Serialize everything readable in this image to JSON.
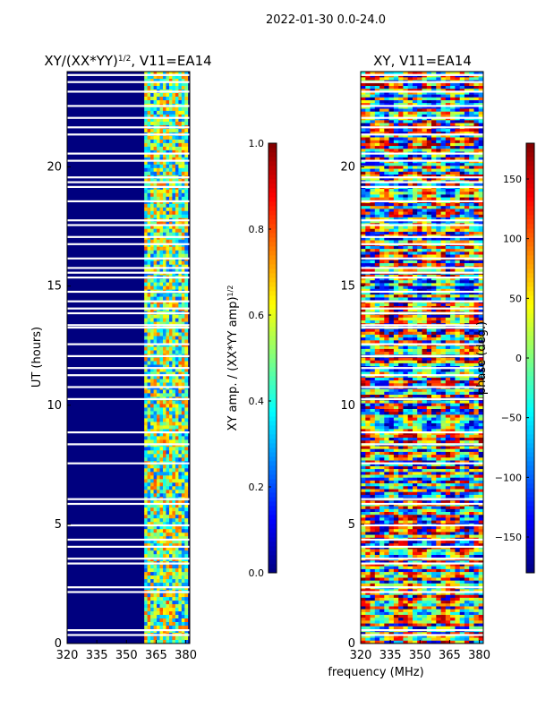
{
  "suptitle": "2022-01-30 0.0-24.0",
  "shared_xlabel": "frequency (MHz)",
  "colors": {
    "background_low": "#00007f",
    "jet": [
      "#00007f",
      "#0000ff",
      "#007fff",
      "#00ffff",
      "#7fff7f",
      "#ffff00",
      "#ff7f00",
      "#ff0000",
      "#7f0000"
    ],
    "gap": "#ffffff"
  },
  "chart_data": [
    {
      "type": "heatmap",
      "title": "XY/(XX*YY)",
      "title_sup": "1/2",
      "title_suffix": ", V11=EA14",
      "xlabel": "",
      "ylabel": "UT (hours)",
      "xlim": [
        320,
        382
      ],
      "ylim": [
        0,
        24
      ],
      "xticks": [
        320,
        335,
        350,
        365,
        380
      ],
      "yticks": [
        0,
        5,
        10,
        15,
        20
      ],
      "grid": false,
      "bands": [
        {
          "freq_range": [
            320,
            359
          ],
          "value_range": [
            0.0,
            0.15
          ],
          "description": "low amplitude"
        },
        {
          "freq_range": [
            359,
            381
          ],
          "value_range": [
            0.2,
            0.8
          ],
          "description": "higher amplitude"
        }
      ],
      "colorbar": {
        "label": "XY amp. / (XX*YY amp)",
        "label_sup": "1/2",
        "range": [
          0.0,
          1.0
        ],
        "ticks": [
          "0.0",
          "0.2",
          "0.4",
          "0.6",
          "0.8",
          "1.0"
        ],
        "colormap": "jet"
      }
    },
    {
      "type": "heatmap",
      "title": "XY, V11=EA14",
      "xlabel": "frequency (MHz)",
      "ylabel": "",
      "xlim": [
        320,
        382
      ],
      "ylim": [
        0,
        24
      ],
      "xticks": [
        320,
        335,
        350,
        365,
        380
      ],
      "yticks": [
        0,
        5,
        10,
        15,
        20
      ],
      "grid": false,
      "colorbar": {
        "label": "phase (deg.)",
        "range": [
          -180,
          180
        ],
        "ticks": [
          "150",
          "100",
          "50",
          "0",
          "−50",
          "−100",
          "−150"
        ],
        "tick_values": [
          150,
          100,
          50,
          0,
          -50,
          -100,
          -150
        ],
        "colormap": "jet"
      }
    }
  ]
}
